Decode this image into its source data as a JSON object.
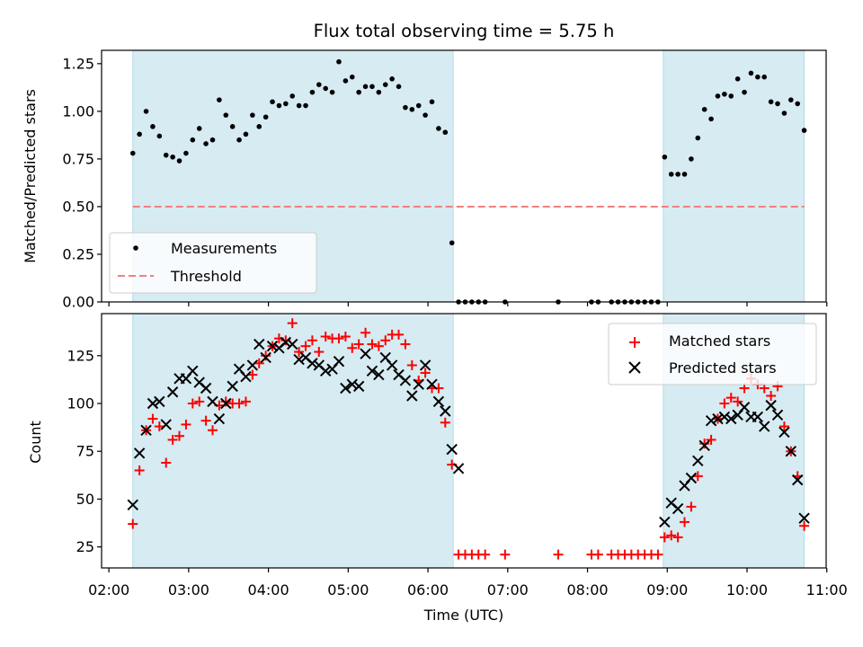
{
  "chart_data": [
    {
      "type": "scatter",
      "title": "Flux total observing time = 5.75 h",
      "xlabel": "",
      "ylabel": "Matched/Predicted stars",
      "xlim": [
        "02:00",
        "11:00"
      ],
      "ylim": [
        0.0,
        1.32
      ],
      "yticks": [
        "0.00",
        "0.25",
        "0.50",
        "0.75",
        "1.00",
        "1.25"
      ],
      "shaded_intervals": [
        [
          "02:18",
          "06:19"
        ],
        [
          "08:57",
          "10:43"
        ]
      ],
      "threshold": 0.5,
      "legend": {
        "position": "lower-left",
        "entries": [
          "Measurements",
          "Threshold"
        ]
      },
      "series": [
        {
          "name": "Measurements",
          "color": "#000000",
          "marker": "dot",
          "x": [
            "02:18",
            "02:23",
            "02:28",
            "02:33",
            "02:38",
            "02:43",
            "02:48",
            "02:53",
            "02:58",
            "03:03",
            "03:08",
            "03:13",
            "03:18",
            "03:23",
            "03:28",
            "03:33",
            "03:38",
            "03:43",
            "03:48",
            "03:53",
            "03:58",
            "04:03",
            "04:08",
            "04:13",
            "04:18",
            "04:23",
            "04:28",
            "04:33",
            "04:38",
            "04:43",
            "04:48",
            "04:53",
            "04:58",
            "05:03",
            "05:08",
            "05:13",
            "05:18",
            "05:23",
            "05:28",
            "05:33",
            "05:38",
            "05:43",
            "05:48",
            "05:53",
            "05:58",
            "06:03",
            "06:08",
            "06:13",
            "06:18",
            "06:23",
            "06:28",
            "06:33",
            "06:38",
            "06:43",
            "06:58",
            "07:38",
            "08:03",
            "08:08",
            "08:18",
            "08:23",
            "08:28",
            "08:33",
            "08:38",
            "08:43",
            "08:48",
            "08:53",
            "08:58",
            "09:03",
            "09:08",
            "09:13",
            "09:18",
            "09:23",
            "09:28",
            "09:33",
            "09:38",
            "09:43",
            "09:48",
            "09:53",
            "09:58",
            "10:03",
            "10:08",
            "10:13",
            "10:18",
            "10:23",
            "10:28",
            "10:33",
            "10:38",
            "10:43"
          ],
          "y": [
            0.78,
            0.88,
            1.0,
            0.92,
            0.87,
            0.77,
            0.76,
            0.74,
            0.78,
            0.85,
            0.91,
            0.83,
            0.85,
            1.06,
            0.98,
            0.92,
            0.85,
            0.88,
            0.98,
            0.92,
            0.97,
            1.05,
            1.03,
            1.04,
            1.08,
            1.03,
            1.03,
            1.1,
            1.14,
            1.12,
            1.1,
            1.26,
            1.16,
            1.18,
            1.1,
            1.13,
            1.13,
            1.1,
            1.14,
            1.17,
            1.13,
            1.02,
            1.01,
            1.03,
            0.98,
            1.05,
            0.91,
            0.89,
            0.31,
            0.0,
            0.0,
            0.0,
            0.0,
            0.0,
            0.0,
            0.0,
            0.0,
            0.0,
            0.0,
            0.0,
            0.0,
            0.0,
            0.0,
            0.0,
            0.0,
            0.0,
            0.76,
            0.67,
            0.67,
            0.67,
            0.75,
            0.86,
            1.01,
            0.96,
            1.08,
            1.09,
            1.08,
            1.17,
            1.1,
            1.2,
            1.18,
            1.18,
            1.05,
            1.04,
            0.99,
            1.06,
            1.04,
            0.9
          ]
        }
      ]
    },
    {
      "type": "scatter",
      "title": "",
      "xlabel": "Time (UTC)",
      "ylabel": "Count",
      "xticks": [
        "02:00",
        "03:00",
        "04:00",
        "05:00",
        "06:00",
        "07:00",
        "08:00",
        "09:00",
        "10:00",
        "11:00"
      ],
      "xlim": [
        "02:00",
        "11:00"
      ],
      "ylim": [
        14,
        147
      ],
      "yticks": [
        "25",
        "50",
        "75",
        "100",
        "125"
      ],
      "shaded_intervals": [
        [
          "02:18",
          "06:19"
        ],
        [
          "08:57",
          "10:43"
        ]
      ],
      "legend": {
        "position": "top-right",
        "entries": [
          "Matched stars",
          "Predicted stars"
        ]
      },
      "series": [
        {
          "name": "Matched stars",
          "color": "#ff0000",
          "marker": "plus",
          "x": [
            "02:18",
            "02:23",
            "02:28",
            "02:33",
            "02:38",
            "02:43",
            "02:48",
            "02:53",
            "02:58",
            "03:03",
            "03:08",
            "03:13",
            "03:18",
            "03:23",
            "03:28",
            "03:33",
            "03:38",
            "03:43",
            "03:48",
            "03:53",
            "03:58",
            "04:03",
            "04:08",
            "04:13",
            "04:18",
            "04:23",
            "04:28",
            "04:33",
            "04:38",
            "04:43",
            "04:48",
            "04:53",
            "04:58",
            "05:03",
            "05:08",
            "05:13",
            "05:18",
            "05:23",
            "05:28",
            "05:33",
            "05:38",
            "05:43",
            "05:48",
            "05:53",
            "05:58",
            "06:03",
            "06:08",
            "06:13",
            "06:18",
            "06:23",
            "06:28",
            "06:33",
            "06:38",
            "06:43",
            "06:58",
            "07:38",
            "08:03",
            "08:08",
            "08:18",
            "08:23",
            "08:28",
            "08:33",
            "08:38",
            "08:43",
            "08:48",
            "08:53",
            "08:58",
            "09:03",
            "09:08",
            "09:13",
            "09:18",
            "09:23",
            "09:28",
            "09:33",
            "09:38",
            "09:43",
            "09:48",
            "09:53",
            "09:58",
            "10:03",
            "10:08",
            "10:13",
            "10:18",
            "10:23",
            "10:28",
            "10:33",
            "10:38",
            "10:43"
          ],
          "y": [
            37,
            65,
            86,
            92,
            88,
            69,
            81,
            83,
            89,
            100,
            101,
            91,
            86,
            99,
            101,
            100,
            100,
            101,
            115,
            121,
            125,
            130,
            134,
            133,
            142,
            127,
            130,
            133,
            127,
            135,
            134,
            134,
            135,
            129,
            131,
            137,
            131,
            130,
            133,
            136,
            136,
            131,
            120,
            112,
            116,
            108,
            108,
            90,
            68,
            21,
            21,
            21,
            21,
            21,
            21,
            21,
            21,
            21,
            21,
            21,
            21,
            21,
            21,
            21,
            21,
            21,
            30,
            31,
            30,
            38,
            46,
            62,
            79,
            81,
            92,
            100,
            103,
            101,
            108,
            113,
            110,
            108,
            104,
            109,
            88,
            75,
            62,
            36
          ]
        },
        {
          "name": "Predicted stars",
          "color": "#000000",
          "marker": "x",
          "x": [
            "02:18",
            "02:23",
            "02:28",
            "02:33",
            "02:38",
            "02:43",
            "02:48",
            "02:53",
            "02:58",
            "03:03",
            "03:08",
            "03:13",
            "03:18",
            "03:23",
            "03:28",
            "03:33",
            "03:38",
            "03:43",
            "03:48",
            "03:53",
            "03:58",
            "04:03",
            "04:08",
            "04:13",
            "04:18",
            "04:23",
            "04:28",
            "04:33",
            "04:38",
            "04:43",
            "04:48",
            "04:53",
            "04:58",
            "05:03",
            "05:08",
            "05:13",
            "05:18",
            "05:23",
            "05:28",
            "05:33",
            "05:38",
            "05:43",
            "05:48",
            "05:53",
            "05:58",
            "06:03",
            "06:08",
            "06:13",
            "06:18",
            "06:23",
            "08:58",
            "09:03",
            "09:08",
            "09:13",
            "09:18",
            "09:23",
            "09:28",
            "09:33",
            "09:38",
            "09:43",
            "09:48",
            "09:53",
            "09:58",
            "10:03",
            "10:08",
            "10:13",
            "10:18",
            "10:23",
            "10:28",
            "10:33",
            "10:38",
            "10:43"
          ],
          "y": [
            47,
            74,
            86,
            100,
            101,
            89,
            106,
            113,
            113,
            117,
            111,
            108,
            101,
            92,
            100,
            109,
            118,
            114,
            120,
            131,
            124,
            130,
            129,
            132,
            131,
            123,
            124,
            121,
            120,
            117,
            118,
            122,
            108,
            110,
            109,
            126,
            117,
            115,
            124,
            120,
            115,
            112,
            104,
            110,
            120,
            110,
            101,
            96,
            76,
            66,
            38,
            48,
            45,
            57,
            61,
            70,
            78,
            91,
            92,
            93,
            92,
            94,
            98,
            93,
            93,
            88,
            99,
            94,
            85,
            75,
            60,
            40
          ]
        }
      ]
    }
  ]
}
